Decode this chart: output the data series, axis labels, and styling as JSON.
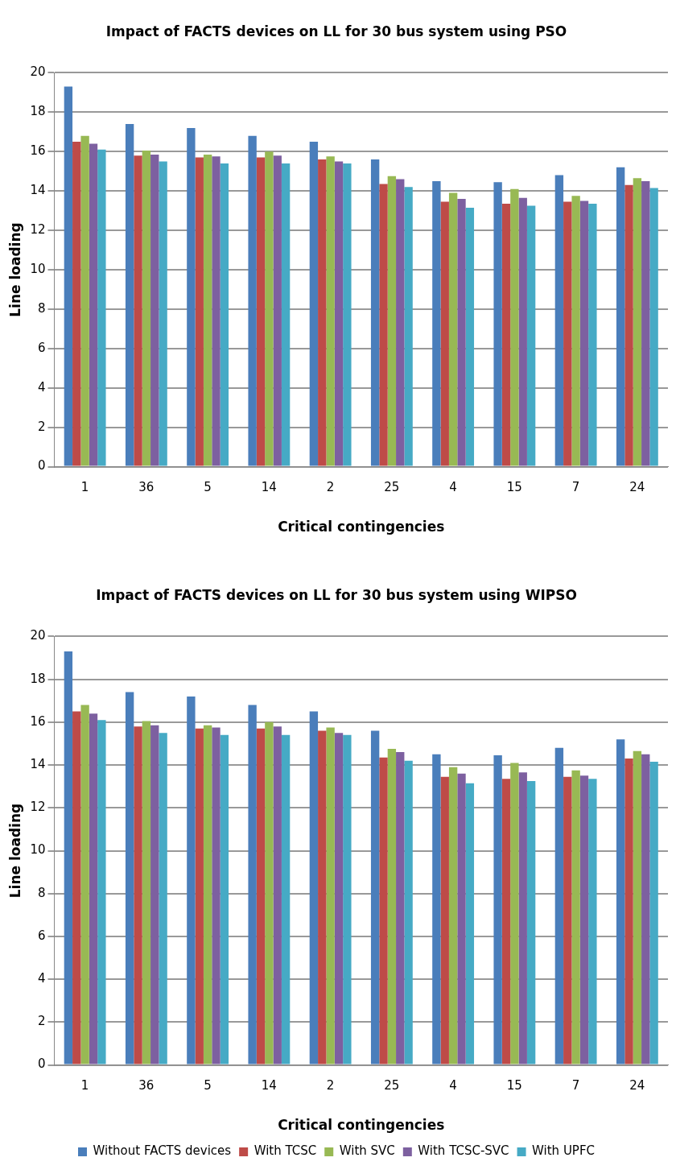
{
  "chart_data": [
    {
      "type": "bar",
      "title": "Impact of FACTS devices on LL for 30 bus system using PSO",
      "xlabel": "Critical contingencies",
      "ylabel": "Line loading",
      "categories": [
        "1",
        "36",
        "5",
        "14",
        "2",
        "25",
        "4",
        "15",
        "7",
        "24"
      ],
      "series": [
        {
          "color": "#4a7ebb",
          "values": [
            19.3,
            17.4,
            17.2,
            16.8,
            16.5,
            15.6,
            14.5,
            14.45,
            14.8,
            15.2
          ]
        },
        {
          "color": "#be4b48",
          "values": [
            16.5,
            15.8,
            15.7,
            15.7,
            15.6,
            14.35,
            13.45,
            13.35,
            13.45,
            14.3
          ]
        },
        {
          "color": "#98b954",
          "values": [
            16.8,
            16.05,
            15.85,
            16.0,
            15.75,
            14.75,
            13.9,
            14.1,
            13.75,
            14.65
          ]
        },
        {
          "color": "#7d60a0",
          "values": [
            16.4,
            15.85,
            15.75,
            15.8,
            15.5,
            14.6,
            13.6,
            13.65,
            13.5,
            14.5
          ]
        },
        {
          "color": "#46aac5",
          "values": [
            16.1,
            15.5,
            15.4,
            15.4,
            15.4,
            14.2,
            13.15,
            13.25,
            13.35,
            14.15
          ]
        }
      ],
      "ylim": [
        0,
        20
      ],
      "yticks": [
        0,
        2,
        4,
        6,
        8,
        10,
        12,
        14,
        16,
        18,
        20
      ],
      "grid": "y",
      "legend": false
    },
    {
      "type": "bar",
      "title": "Impact of FACTS devices on LL for 30 bus system using WIPSO",
      "xlabel": "Critical contingencies",
      "ylabel": "Line loading",
      "categories": [
        "1",
        "36",
        "5",
        "14",
        "2",
        "25",
        "4",
        "15",
        "7",
        "24"
      ],
      "series": [
        {
          "name": "Without FACTS devices",
          "color": "#4a7ebb",
          "values": [
            19.3,
            17.4,
            17.2,
            16.8,
            16.5,
            15.6,
            14.5,
            14.45,
            14.8,
            15.2
          ]
        },
        {
          "name": "With TCSC",
          "color": "#be4b48",
          "values": [
            16.5,
            15.8,
            15.7,
            15.7,
            15.6,
            14.35,
            13.45,
            13.35,
            13.45,
            14.3
          ]
        },
        {
          "name": "With SVC",
          "color": "#98b954",
          "values": [
            16.8,
            16.05,
            15.85,
            16.0,
            15.75,
            14.75,
            13.9,
            14.1,
            13.75,
            14.65
          ]
        },
        {
          "name": "With TCSC-SVC",
          "color": "#7d60a0",
          "values": [
            16.4,
            15.85,
            15.75,
            15.8,
            15.5,
            14.6,
            13.6,
            13.65,
            13.5,
            14.5
          ]
        },
        {
          "name": "With UPFC",
          "color": "#46aac5",
          "values": [
            16.1,
            15.5,
            15.4,
            15.4,
            15.4,
            14.2,
            13.15,
            13.25,
            13.35,
            14.15
          ]
        }
      ],
      "ylim": [
        0,
        20
      ],
      "yticks": [
        0,
        2,
        4,
        6,
        8,
        10,
        12,
        14,
        16,
        18,
        20
      ],
      "grid": "y",
      "legend": "bottom"
    }
  ]
}
